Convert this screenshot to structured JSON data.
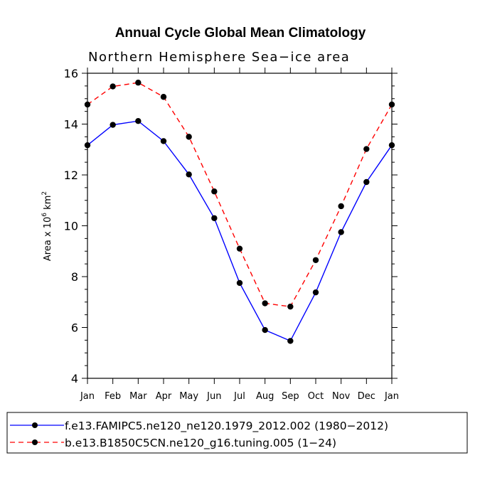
{
  "chart_data": {
    "type": "line",
    "title": "Annual Cycle Global Mean Climatology",
    "subtitle": "Northern Hemisphere Sea−ice area",
    "xlabel": "",
    "ylabel": "Area x 10",
    "ylabel_exp": "6",
    "ylabel_unit": "km",
    "ylabel_unit_exp": "2",
    "categories": [
      "Jan",
      "Feb",
      "Mar",
      "Apr",
      "May",
      "Jun",
      "Jul",
      "Aug",
      "Sep",
      "Oct",
      "Nov",
      "Dec",
      "Jan"
    ],
    "ylim": [
      4,
      16
    ],
    "yticks": [
      4,
      6,
      8,
      10,
      12,
      14,
      16
    ],
    "series": [
      {
        "name": "f.e13.FAMIPC5.ne120_ne120.1979_2012.002 (1980−2012)",
        "color": "#0000ff",
        "dash": "solid",
        "values": [
          13.17,
          13.97,
          14.12,
          13.33,
          12.02,
          10.3,
          7.75,
          5.9,
          5.47,
          7.38,
          9.75,
          11.72,
          13.17
        ]
      },
      {
        "name": "b.e13.B1850C5CN.ne120_g16.tuning.005 (1−24)",
        "color": "#ff0000",
        "dash": "dashed",
        "values": [
          14.77,
          15.48,
          15.63,
          15.07,
          13.5,
          11.35,
          9.1,
          6.95,
          6.82,
          8.65,
          10.77,
          13.02,
          14.77
        ]
      }
    ]
  }
}
